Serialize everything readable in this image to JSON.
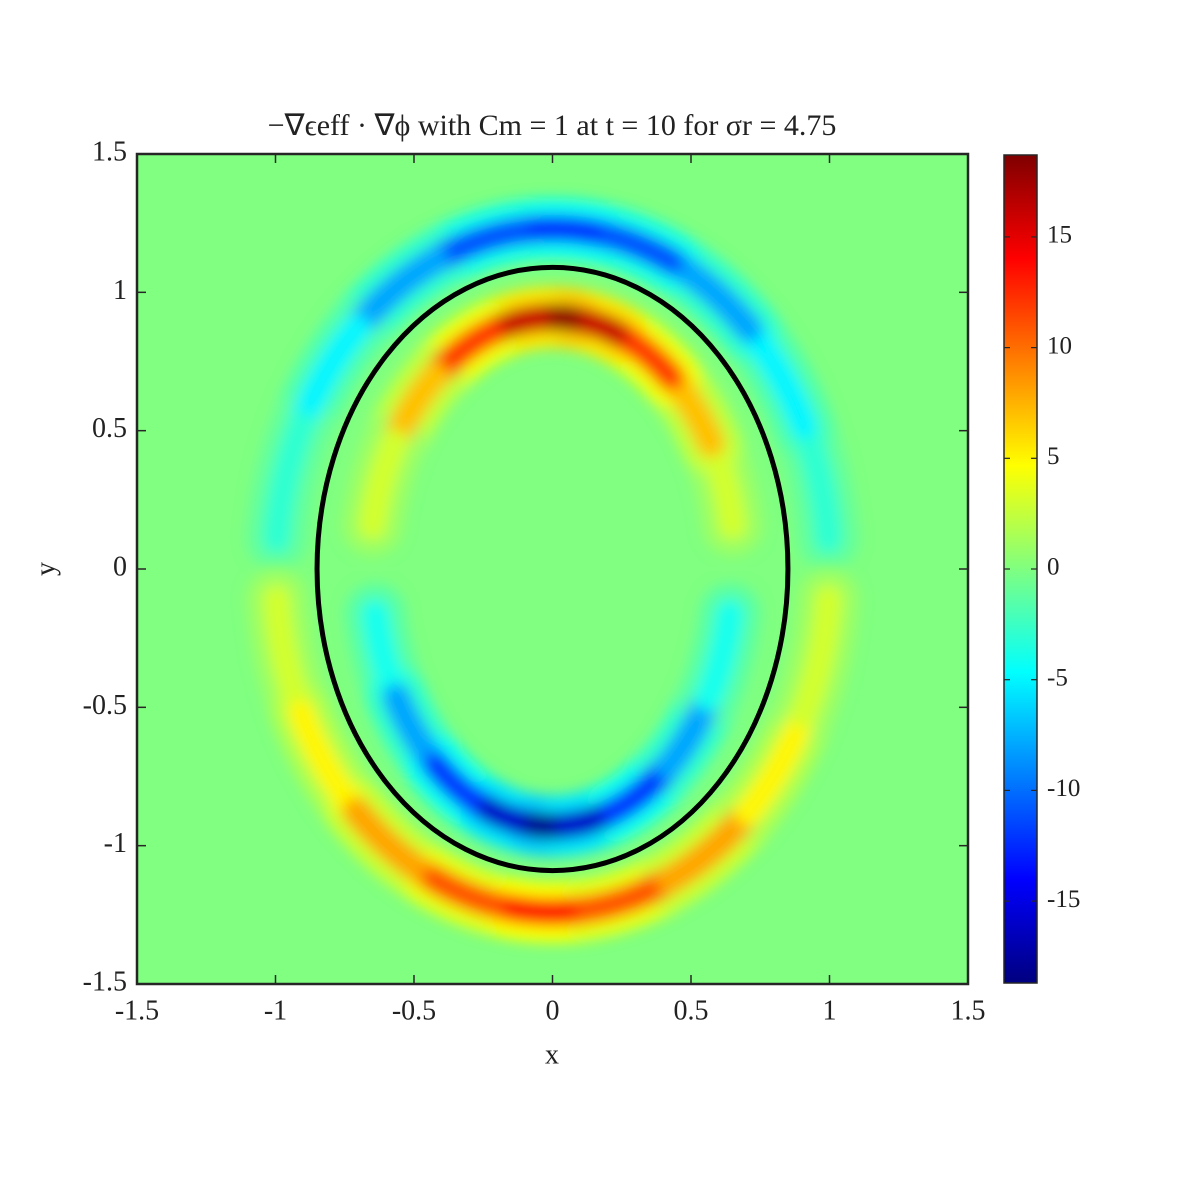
{
  "chart_data": {
    "type": "heatmap",
    "title": "−∇ϵeff · ∇ϕ with Cm = 1 at t = 10 for σr = 4.75",
    "xlabel": "x",
    "ylabel": "y",
    "xlim": [
      -1.5,
      1.5
    ],
    "ylim": [
      -1.5,
      1.5
    ],
    "xticks": [
      -1.5,
      -1,
      -0.5,
      0,
      0.5,
      1,
      1.5
    ],
    "yticks": [
      -1.5,
      -1,
      -0.5,
      0,
      0.5,
      1,
      1.5
    ],
    "colormap": "jet",
    "clim": [
      -18.7,
      18.7
    ],
    "colorbar_ticks": [
      -15,
      -10,
      -5,
      0,
      5,
      10,
      15
    ],
    "background_value": 0,
    "bands": [
      {
        "rx": 1.0,
        "ry": 1.23,
        "angles": [
          15,
          35,
          55,
          75,
          90,
          105,
          125,
          145,
          165
        ],
        "values": [
          -3,
          -5,
          -8,
          -11,
          -12,
          -11,
          -8,
          -5,
          -3
        ]
      },
      {
        "rx": 0.66,
        "ry": 0.91,
        "angles": [
          20,
          40,
          60,
          80,
          90,
          100,
          120,
          140,
          160
        ],
        "values": [
          3,
          7,
          12,
          16,
          18,
          16,
          12,
          7,
          3
        ]
      },
      {
        "rx": 0.65,
        "ry": 0.93,
        "angles": [
          -160,
          -140,
          -120,
          -100,
          -90,
          -80,
          -60,
          -40,
          -20
        ],
        "values": [
          -4,
          -8,
          -12,
          -16,
          -18,
          -16,
          -12,
          -8,
          -4
        ]
      },
      {
        "rx": 1.0,
        "ry": 1.24,
        "angles": [
          -165,
          -145,
          -125,
          -105,
          -90,
          -75,
          -55,
          -35,
          -15
        ],
        "values": [
          3,
          5,
          8,
          11,
          13,
          11,
          8,
          5,
          3
        ]
      }
    ],
    "contour": {
      "color": "#000000",
      "rx": 0.85,
      "ry": 1.09
    }
  }
}
